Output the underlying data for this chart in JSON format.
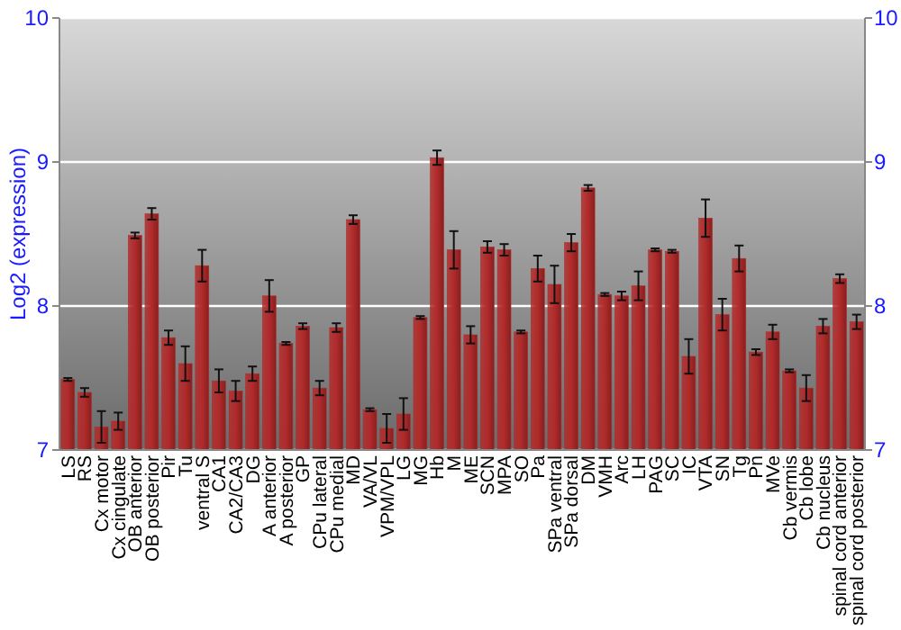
{
  "chart_data": {
    "type": "bar",
    "ylabel": "Log2 (expression)",
    "categories": [
      "LS",
      "RS",
      "Cx motor",
      "Cx cingulate",
      "OB anterior",
      "OB posterior",
      "Pir",
      "Tu",
      "ventral S",
      "CA1",
      "CA2/CA3",
      "DG",
      "A anterior",
      "A posterior",
      "GP",
      "CPu lateral",
      "CPu medial",
      "MD",
      "VA/VL",
      "VPM/VPL",
      "LG",
      "MG",
      "Hb",
      "M",
      "ME",
      "SCN",
      "MPA",
      "SO",
      "Pa",
      "SPa ventral",
      "SPa dorsal",
      "DM",
      "VMH",
      "Arc",
      "LH",
      "PAG",
      "SC",
      "IC",
      "VTA",
      "SN",
      "Tg",
      "Pn",
      "MVe",
      "Cb vermis",
      "Cb lobe",
      "Cb nucleus",
      "spinal cord anterior",
      "spinal cord posterior"
    ],
    "values": [
      7.49,
      7.4,
      7.16,
      7.2,
      8.49,
      8.64,
      7.78,
      7.6,
      8.28,
      7.48,
      7.41,
      7.53,
      8.07,
      7.74,
      7.86,
      7.43,
      7.85,
      8.6,
      7.28,
      7.15,
      7.25,
      7.92,
      9.03,
      8.39,
      7.8,
      8.41,
      8.39,
      7.82,
      8.26,
      8.15,
      8.44,
      8.82,
      8.08,
      8.07,
      8.14,
      8.39,
      8.38,
      7.65,
      8.61,
      7.94,
      8.33,
      7.68,
      7.82,
      7.55,
      7.43,
      7.86,
      8.19,
      7.89
    ],
    "errors": [
      0.01,
      0.03,
      0.11,
      0.06,
      0.02,
      0.04,
      0.05,
      0.12,
      0.11,
      0.08,
      0.07,
      0.05,
      0.11,
      0.01,
      0.02,
      0.05,
      0.03,
      0.03,
      0.01,
      0.1,
      0.11,
      0.01,
      0.05,
      0.13,
      0.06,
      0.04,
      0.04,
      0.01,
      0.09,
      0.13,
      0.06,
      0.02,
      0.01,
      0.03,
      0.1,
      0.01,
      0.01,
      0.12,
      0.13,
      0.11,
      0.09,
      0.02,
      0.05,
      0.01,
      0.09,
      0.05,
      0.03,
      0.05
    ],
    "color": "#b22a2a",
    "ylim": [
      7,
      10
    ],
    "yticks": [
      7,
      8,
      9,
      10
    ],
    "y2lim": [
      7,
      10
    ],
    "y2ticks": [
      7,
      8,
      9,
      10
    ],
    "grid": "y"
  }
}
